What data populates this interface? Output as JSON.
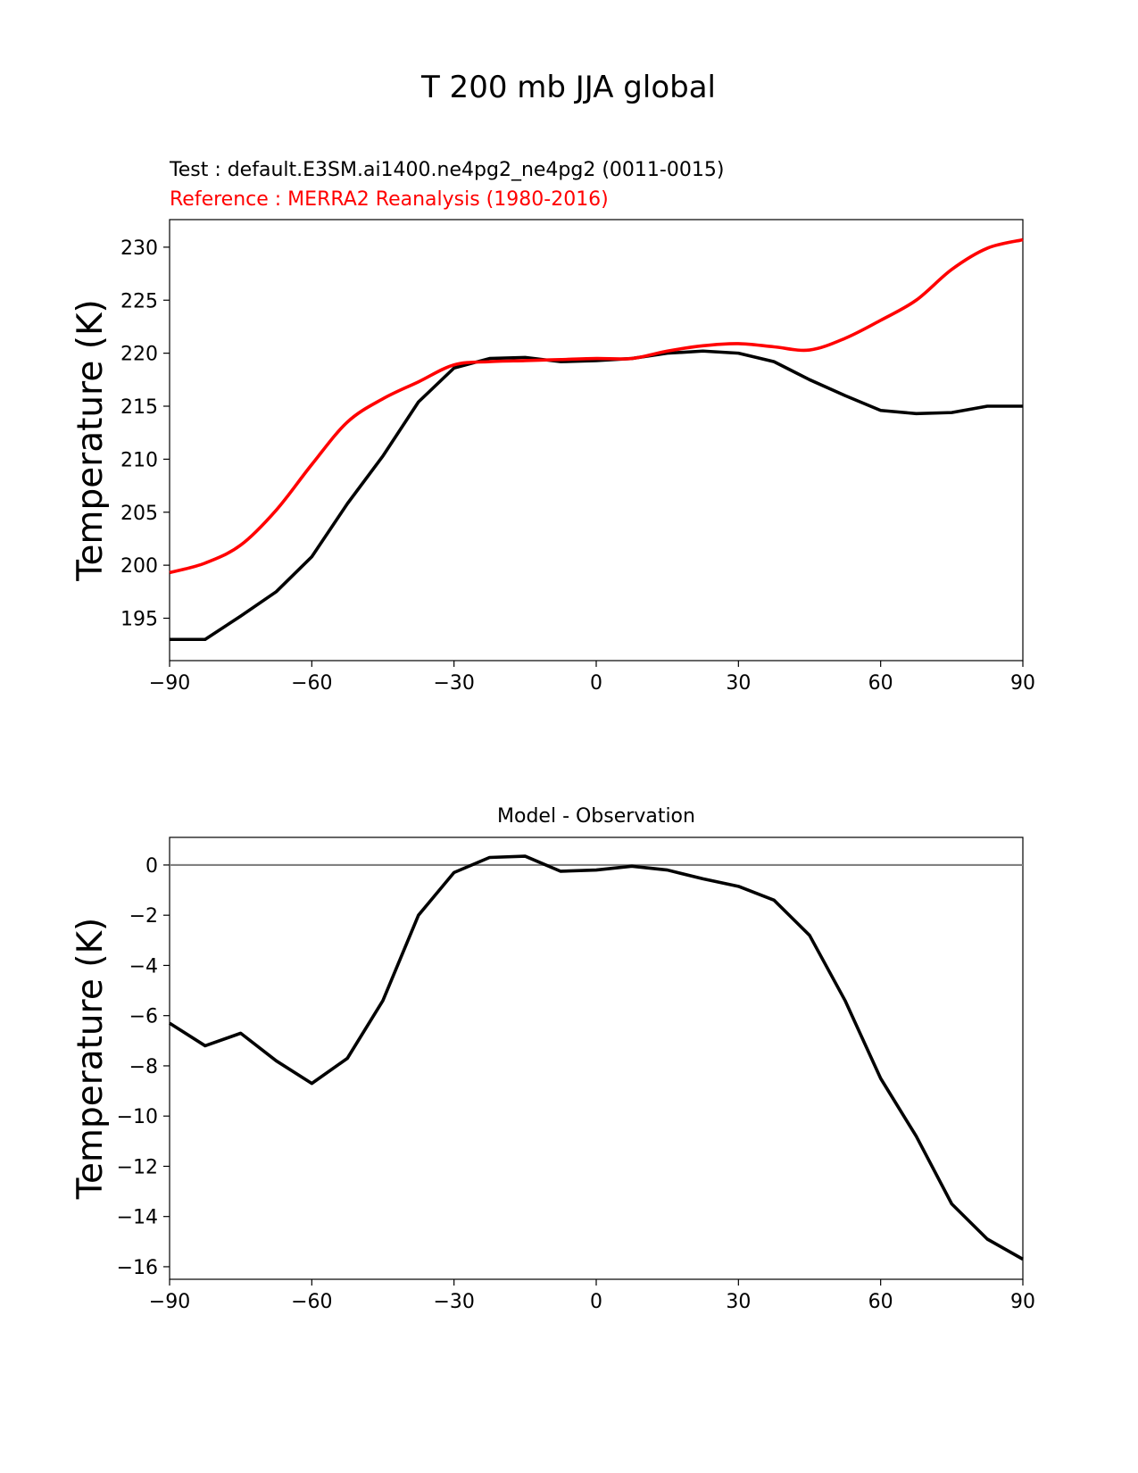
{
  "figure": {
    "title": "T 200 mb JJA global",
    "test_label": "Test : default.E3SM.ai1400.ne4pg2_ne4pg2 (0011-0015)",
    "reference_label": "Reference : MERRA2 Reanalysis (1980-2016)"
  },
  "colors": {
    "test": "#000000",
    "reference": "#ff0000",
    "zero_line": "#808080"
  },
  "chart_data": [
    {
      "type": "line",
      "title": "",
      "xlabel": "",
      "ylabel": "Temperature (K)",
      "xlim": [
        -90,
        90
      ],
      "ylim": [
        191,
        232.6
      ],
      "xticks": [
        -90,
        -60,
        -30,
        0,
        30,
        60,
        90
      ],
      "xtick_labels": [
        "−90",
        "−60",
        "−30",
        "0",
        "30",
        "60",
        "90"
      ],
      "yticks": [
        195,
        200,
        205,
        210,
        215,
        220,
        225,
        230
      ],
      "ytick_labels": [
        "195",
        "200",
        "205",
        "210",
        "215",
        "220",
        "225",
        "230"
      ],
      "series": [
        {
          "name": "Test",
          "color": "#000000",
          "x": [
            -90,
            -82.5,
            -75,
            -67.5,
            -60,
            -52.5,
            -45,
            -37.5,
            -30,
            -22.5,
            -15,
            -7.5,
            0,
            7.5,
            15,
            22.5,
            30,
            37.5,
            45,
            52.5,
            60,
            67.5,
            75,
            82.5,
            90
          ],
          "values": [
            193.0,
            193.0,
            195.2,
            197.5,
            200.8,
            205.8,
            210.3,
            215.4,
            218.6,
            219.5,
            219.6,
            219.2,
            219.3,
            219.5,
            220.0,
            220.2,
            220.0,
            219.2,
            217.5,
            216.0,
            214.6,
            214.3,
            214.4,
            215.0,
            215.0
          ]
        },
        {
          "name": "Reference",
          "color": "#ff0000",
          "x": [
            -90,
            -82.5,
            -75,
            -67.5,
            -60,
            -52.5,
            -45,
            -37.5,
            -30,
            -22.5,
            -15,
            -7.5,
            0,
            7.5,
            15,
            22.5,
            30,
            37.5,
            45,
            52.5,
            60,
            67.5,
            75,
            82.5,
            90
          ],
          "values": [
            199.3,
            200.2,
            201.9,
            205.2,
            209.5,
            213.5,
            215.7,
            217.3,
            218.9,
            219.2,
            219.3,
            219.4,
            219.5,
            219.5,
            220.2,
            220.7,
            220.9,
            220.6,
            220.3,
            221.4,
            223.1,
            225.0,
            227.9,
            229.9,
            230.7
          ]
        }
      ]
    },
    {
      "type": "line",
      "title": "Model - Observation",
      "xlabel": "",
      "ylabel": "Temperature (K)",
      "xlim": [
        -90,
        90
      ],
      "ylim": [
        -16.5,
        1.1
      ],
      "xticks": [
        -90,
        -60,
        -30,
        0,
        30,
        60,
        90
      ],
      "xtick_labels": [
        "−90",
        "−60",
        "−30",
        "0",
        "30",
        "60",
        "90"
      ],
      "yticks": [
        0,
        -2,
        -4,
        -6,
        -8,
        -10,
        -12,
        -14,
        -16
      ],
      "ytick_labels": [
        "0",
        "−2",
        "−4",
        "−6",
        "−8",
        "−10",
        "−12",
        "−14",
        "−16"
      ],
      "zero_line": 0,
      "series": [
        {
          "name": "Model - Observation",
          "color": "#000000",
          "x": [
            -90,
            -82.5,
            -75,
            -67.5,
            -60,
            -52.5,
            -45,
            -37.5,
            -30,
            -22.5,
            -15,
            -7.5,
            0,
            7.5,
            15,
            22.5,
            30,
            37.5,
            45,
            52.5,
            60,
            67.5,
            75,
            82.5,
            90
          ],
          "values": [
            -6.3,
            -7.2,
            -6.7,
            -7.8,
            -8.7,
            -7.7,
            -5.4,
            -2.0,
            -0.3,
            0.3,
            0.35,
            -0.25,
            -0.2,
            -0.05,
            -0.2,
            -0.55,
            -0.85,
            -1.4,
            -2.8,
            -5.4,
            -8.5,
            -10.8,
            -13.5,
            -14.9,
            -15.7
          ]
        }
      ]
    }
  ]
}
